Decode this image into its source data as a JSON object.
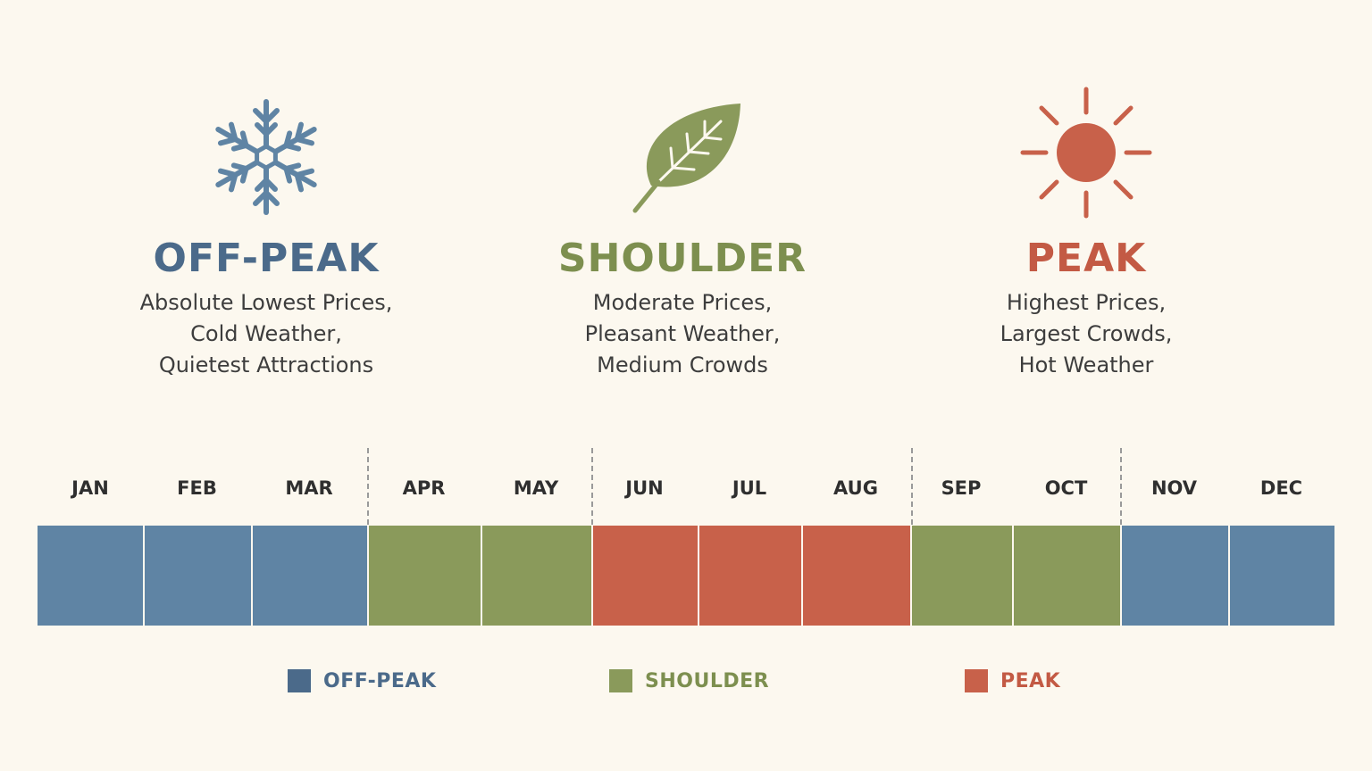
{
  "colors": {
    "off_peak": "#5f84a4",
    "off_peak_text": "#4b6a8a",
    "shoulder": "#8a9a5b",
    "shoulder_text": "#7d8f4f",
    "peak": "#c8614a",
    "peak_text": "#c35a44",
    "background": "#fcf8ef"
  },
  "seasons": [
    {
      "key": "off_peak",
      "icon": "snowflake-icon",
      "title": "OFF-PEAK",
      "lines": [
        "Absolute Lowest Prices,",
        "Cold Weather,",
        "Quietest Attractions"
      ]
    },
    {
      "key": "shoulder",
      "icon": "leaf-icon",
      "title": "SHOULDER",
      "lines": [
        "Moderate Prices,",
        "Pleasant Weather,",
        "Medium Crowds"
      ]
    },
    {
      "key": "peak",
      "icon": "sun-icon",
      "title": "PEAK",
      "lines": [
        "Highest Prices,",
        "Largest Crowds,",
        "Hot Weather"
      ]
    }
  ],
  "months": [
    {
      "label": "JAN",
      "season": "off_peak"
    },
    {
      "label": "FEB",
      "season": "off_peak"
    },
    {
      "label": "MAR",
      "season": "off_peak"
    },
    {
      "label": "APR",
      "season": "shoulder"
    },
    {
      "label": "MAY",
      "season": "shoulder"
    },
    {
      "label": "JUN",
      "season": "peak"
    },
    {
      "label": "JUL",
      "season": "peak"
    },
    {
      "label": "AUG",
      "season": "peak"
    },
    {
      "label": "SEP",
      "season": "shoulder"
    },
    {
      "label": "OCT",
      "season": "shoulder"
    },
    {
      "label": "NOV",
      "season": "off_peak"
    },
    {
      "label": "DEC",
      "season": "off_peak"
    }
  ],
  "legend": [
    {
      "label": "OFF-PEAK",
      "season": "off_peak"
    },
    {
      "label": "SHOULDER",
      "season": "shoulder"
    },
    {
      "label": "PEAK",
      "season": "peak"
    }
  ]
}
